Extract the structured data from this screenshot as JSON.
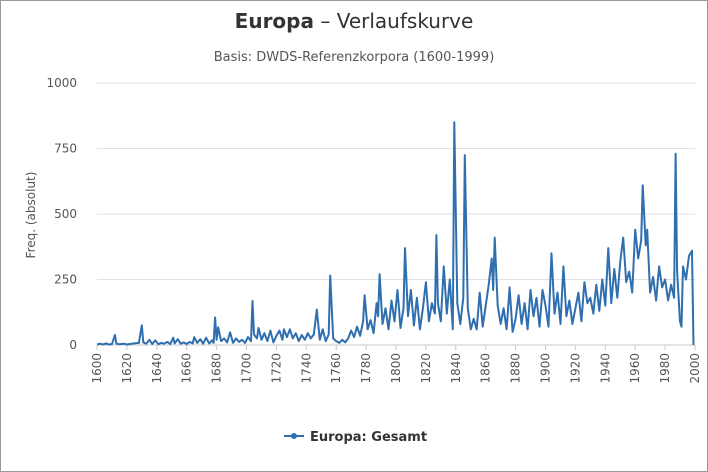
{
  "chart_data": {
    "type": "line",
    "title_main": "Europa",
    "title_rest": " – Verlaufskurve",
    "subtitle": "Basis: DWDS-Referenzkorpora (1600-1999)",
    "ylabel": "Freq. (absolut)",
    "xlabel": "",
    "xlim": [
      1600,
      2000
    ],
    "ylim": [
      0,
      1000
    ],
    "x_ticks": [
      "1600",
      "1620",
      "1640",
      "1660",
      "1680",
      "1700",
      "1720",
      "1740",
      "1760",
      "1780",
      "1800",
      "1820",
      "1840",
      "1860",
      "1880",
      "1900",
      "1920",
      "1940",
      "1960",
      "1980",
      "2000"
    ],
    "y_ticks": [
      "0",
      "250",
      "500",
      "750",
      "1000"
    ],
    "grid": "horizontal",
    "legend_position": "bottom-center",
    "series": [
      {
        "name": "Europa: Gesamt",
        "color": "#2f6fb0",
        "points": [
          [
            1600,
            2
          ],
          [
            1602,
            5
          ],
          [
            1604,
            2
          ],
          [
            1606,
            6
          ],
          [
            1608,
            2
          ],
          [
            1610,
            4
          ],
          [
            1612,
            38
          ],
          [
            1613,
            5
          ],
          [
            1615,
            3
          ],
          [
            1618,
            5
          ],
          [
            1620,
            2
          ],
          [
            1622,
            4
          ],
          [
            1625,
            6
          ],
          [
            1628,
            8
          ],
          [
            1630,
            75
          ],
          [
            1631,
            10
          ],
          [
            1633,
            5
          ],
          [
            1635,
            20
          ],
          [
            1637,
            4
          ],
          [
            1639,
            18
          ],
          [
            1641,
            3
          ],
          [
            1643,
            8
          ],
          [
            1645,
            5
          ],
          [
            1647,
            12
          ],
          [
            1649,
            4
          ],
          [
            1651,
            28
          ],
          [
            1652,
            6
          ],
          [
            1654,
            22
          ],
          [
            1656,
            5
          ],
          [
            1658,
            10
          ],
          [
            1660,
            4
          ],
          [
            1662,
            12
          ],
          [
            1664,
            6
          ],
          [
            1665,
            30
          ],
          [
            1667,
            8
          ],
          [
            1669,
            22
          ],
          [
            1671,
            5
          ],
          [
            1673,
            28
          ],
          [
            1675,
            6
          ],
          [
            1677,
            18
          ],
          [
            1678,
            8
          ],
          [
            1679,
            105
          ],
          [
            1680,
            20
          ],
          [
            1681,
            68
          ],
          [
            1683,
            15
          ],
          [
            1685,
            25
          ],
          [
            1687,
            10
          ],
          [
            1689,
            48
          ],
          [
            1691,
            8
          ],
          [
            1693,
            25
          ],
          [
            1695,
            12
          ],
          [
            1697,
            20
          ],
          [
            1699,
            8
          ],
          [
            1701,
            30
          ],
          [
            1703,
            15
          ],
          [
            1704,
            168
          ],
          [
            1705,
            40
          ],
          [
            1707,
            25
          ],
          [
            1708,
            65
          ],
          [
            1710,
            20
          ],
          [
            1712,
            45
          ],
          [
            1714,
            15
          ],
          [
            1716,
            55
          ],
          [
            1718,
            10
          ],
          [
            1720,
            35
          ],
          [
            1722,
            55
          ],
          [
            1724,
            20
          ],
          [
            1725,
            60
          ],
          [
            1727,
            30
          ],
          [
            1729,
            60
          ],
          [
            1731,
            25
          ],
          [
            1733,
            45
          ],
          [
            1735,
            15
          ],
          [
            1737,
            38
          ],
          [
            1739,
            20
          ],
          [
            1741,
            45
          ],
          [
            1743,
            25
          ],
          [
            1745,
            40
          ],
          [
            1747,
            135
          ],
          [
            1749,
            20
          ],
          [
            1751,
            60
          ],
          [
            1753,
            15
          ],
          [
            1755,
            40
          ],
          [
            1756,
            265
          ],
          [
            1758,
            25
          ],
          [
            1760,
            15
          ],
          [
            1762,
            8
          ],
          [
            1764,
            20
          ],
          [
            1766,
            10
          ],
          [
            1768,
            25
          ],
          [
            1770,
            55
          ],
          [
            1772,
            30
          ],
          [
            1774,
            70
          ],
          [
            1776,
            35
          ],
          [
            1778,
            90
          ],
          [
            1779,
            190
          ],
          [
            1781,
            60
          ],
          [
            1783,
            95
          ],
          [
            1785,
            45
          ],
          [
            1787,
            160
          ],
          [
            1788,
            110
          ],
          [
            1789,
            270
          ],
          [
            1791,
            80
          ],
          [
            1793,
            140
          ],
          [
            1795,
            60
          ],
          [
            1797,
            170
          ],
          [
            1799,
            90
          ],
          [
            1801,
            210
          ],
          [
            1803,
            65
          ],
          [
            1805,
            140
          ],
          [
            1806,
            370
          ],
          [
            1808,
            110
          ],
          [
            1810,
            210
          ],
          [
            1812,
            75
          ],
          [
            1814,
            180
          ],
          [
            1816,
            60
          ],
          [
            1818,
            140
          ],
          [
            1820,
            240
          ],
          [
            1822,
            90
          ],
          [
            1824,
            160
          ],
          [
            1826,
            120
          ],
          [
            1827,
            420
          ],
          [
            1828,
            160
          ],
          [
            1830,
            90
          ],
          [
            1832,
            300
          ],
          [
            1834,
            120
          ],
          [
            1836,
            250
          ],
          [
            1838,
            60
          ],
          [
            1839,
            850
          ],
          [
            1841,
            160
          ],
          [
            1843,
            80
          ],
          [
            1845,
            180
          ],
          [
            1846,
            725
          ],
          [
            1848,
            140
          ],
          [
            1850,
            60
          ],
          [
            1852,
            100
          ],
          [
            1854,
            60
          ],
          [
            1856,
            200
          ],
          [
            1858,
            70
          ],
          [
            1860,
            150
          ],
          [
            1862,
            230
          ],
          [
            1864,
            330
          ],
          [
            1865,
            210
          ],
          [
            1866,
            410
          ],
          [
            1868,
            150
          ],
          [
            1870,
            80
          ],
          [
            1872,
            140
          ],
          [
            1874,
            60
          ],
          [
            1876,
            220
          ],
          [
            1878,
            50
          ],
          [
            1880,
            100
          ],
          [
            1882,
            190
          ],
          [
            1884,
            80
          ],
          [
            1886,
            160
          ],
          [
            1888,
            60
          ],
          [
            1890,
            210
          ],
          [
            1892,
            110
          ],
          [
            1894,
            180
          ],
          [
            1896,
            70
          ],
          [
            1898,
            210
          ],
          [
            1900,
            150
          ],
          [
            1902,
            70
          ],
          [
            1904,
            350
          ],
          [
            1906,
            120
          ],
          [
            1908,
            200
          ],
          [
            1910,
            80
          ],
          [
            1912,
            300
          ],
          [
            1914,
            110
          ],
          [
            1916,
            170
          ],
          [
            1918,
            80
          ],
          [
            1920,
            140
          ],
          [
            1922,
            200
          ],
          [
            1924,
            90
          ],
          [
            1926,
            240
          ],
          [
            1928,
            160
          ],
          [
            1930,
            180
          ],
          [
            1932,
            120
          ],
          [
            1934,
            230
          ],
          [
            1936,
            130
          ],
          [
            1938,
            250
          ],
          [
            1940,
            150
          ],
          [
            1942,
            370
          ],
          [
            1944,
            160
          ],
          [
            1946,
            290
          ],
          [
            1948,
            180
          ],
          [
            1950,
            320
          ],
          [
            1952,
            410
          ],
          [
            1954,
            240
          ],
          [
            1956,
            280
          ],
          [
            1958,
            200
          ],
          [
            1960,
            440
          ],
          [
            1962,
            330
          ],
          [
            1964,
            400
          ],
          [
            1965,
            610
          ],
          [
            1967,
            380
          ],
          [
            1968,
            440
          ],
          [
            1970,
            200
          ],
          [
            1972,
            260
          ],
          [
            1974,
            170
          ],
          [
            1976,
            300
          ],
          [
            1978,
            220
          ],
          [
            1980,
            250
          ],
          [
            1982,
            170
          ],
          [
            1984,
            230
          ],
          [
            1986,
            180
          ],
          [
            1987,
            730
          ],
          [
            1988,
            280
          ],
          [
            1990,
            90
          ],
          [
            1991,
            70
          ],
          [
            1992,
            300
          ],
          [
            1994,
            250
          ],
          [
            1996,
            340
          ],
          [
            1998,
            360
          ],
          [
            1999,
            0
          ]
        ]
      }
    ]
  }
}
